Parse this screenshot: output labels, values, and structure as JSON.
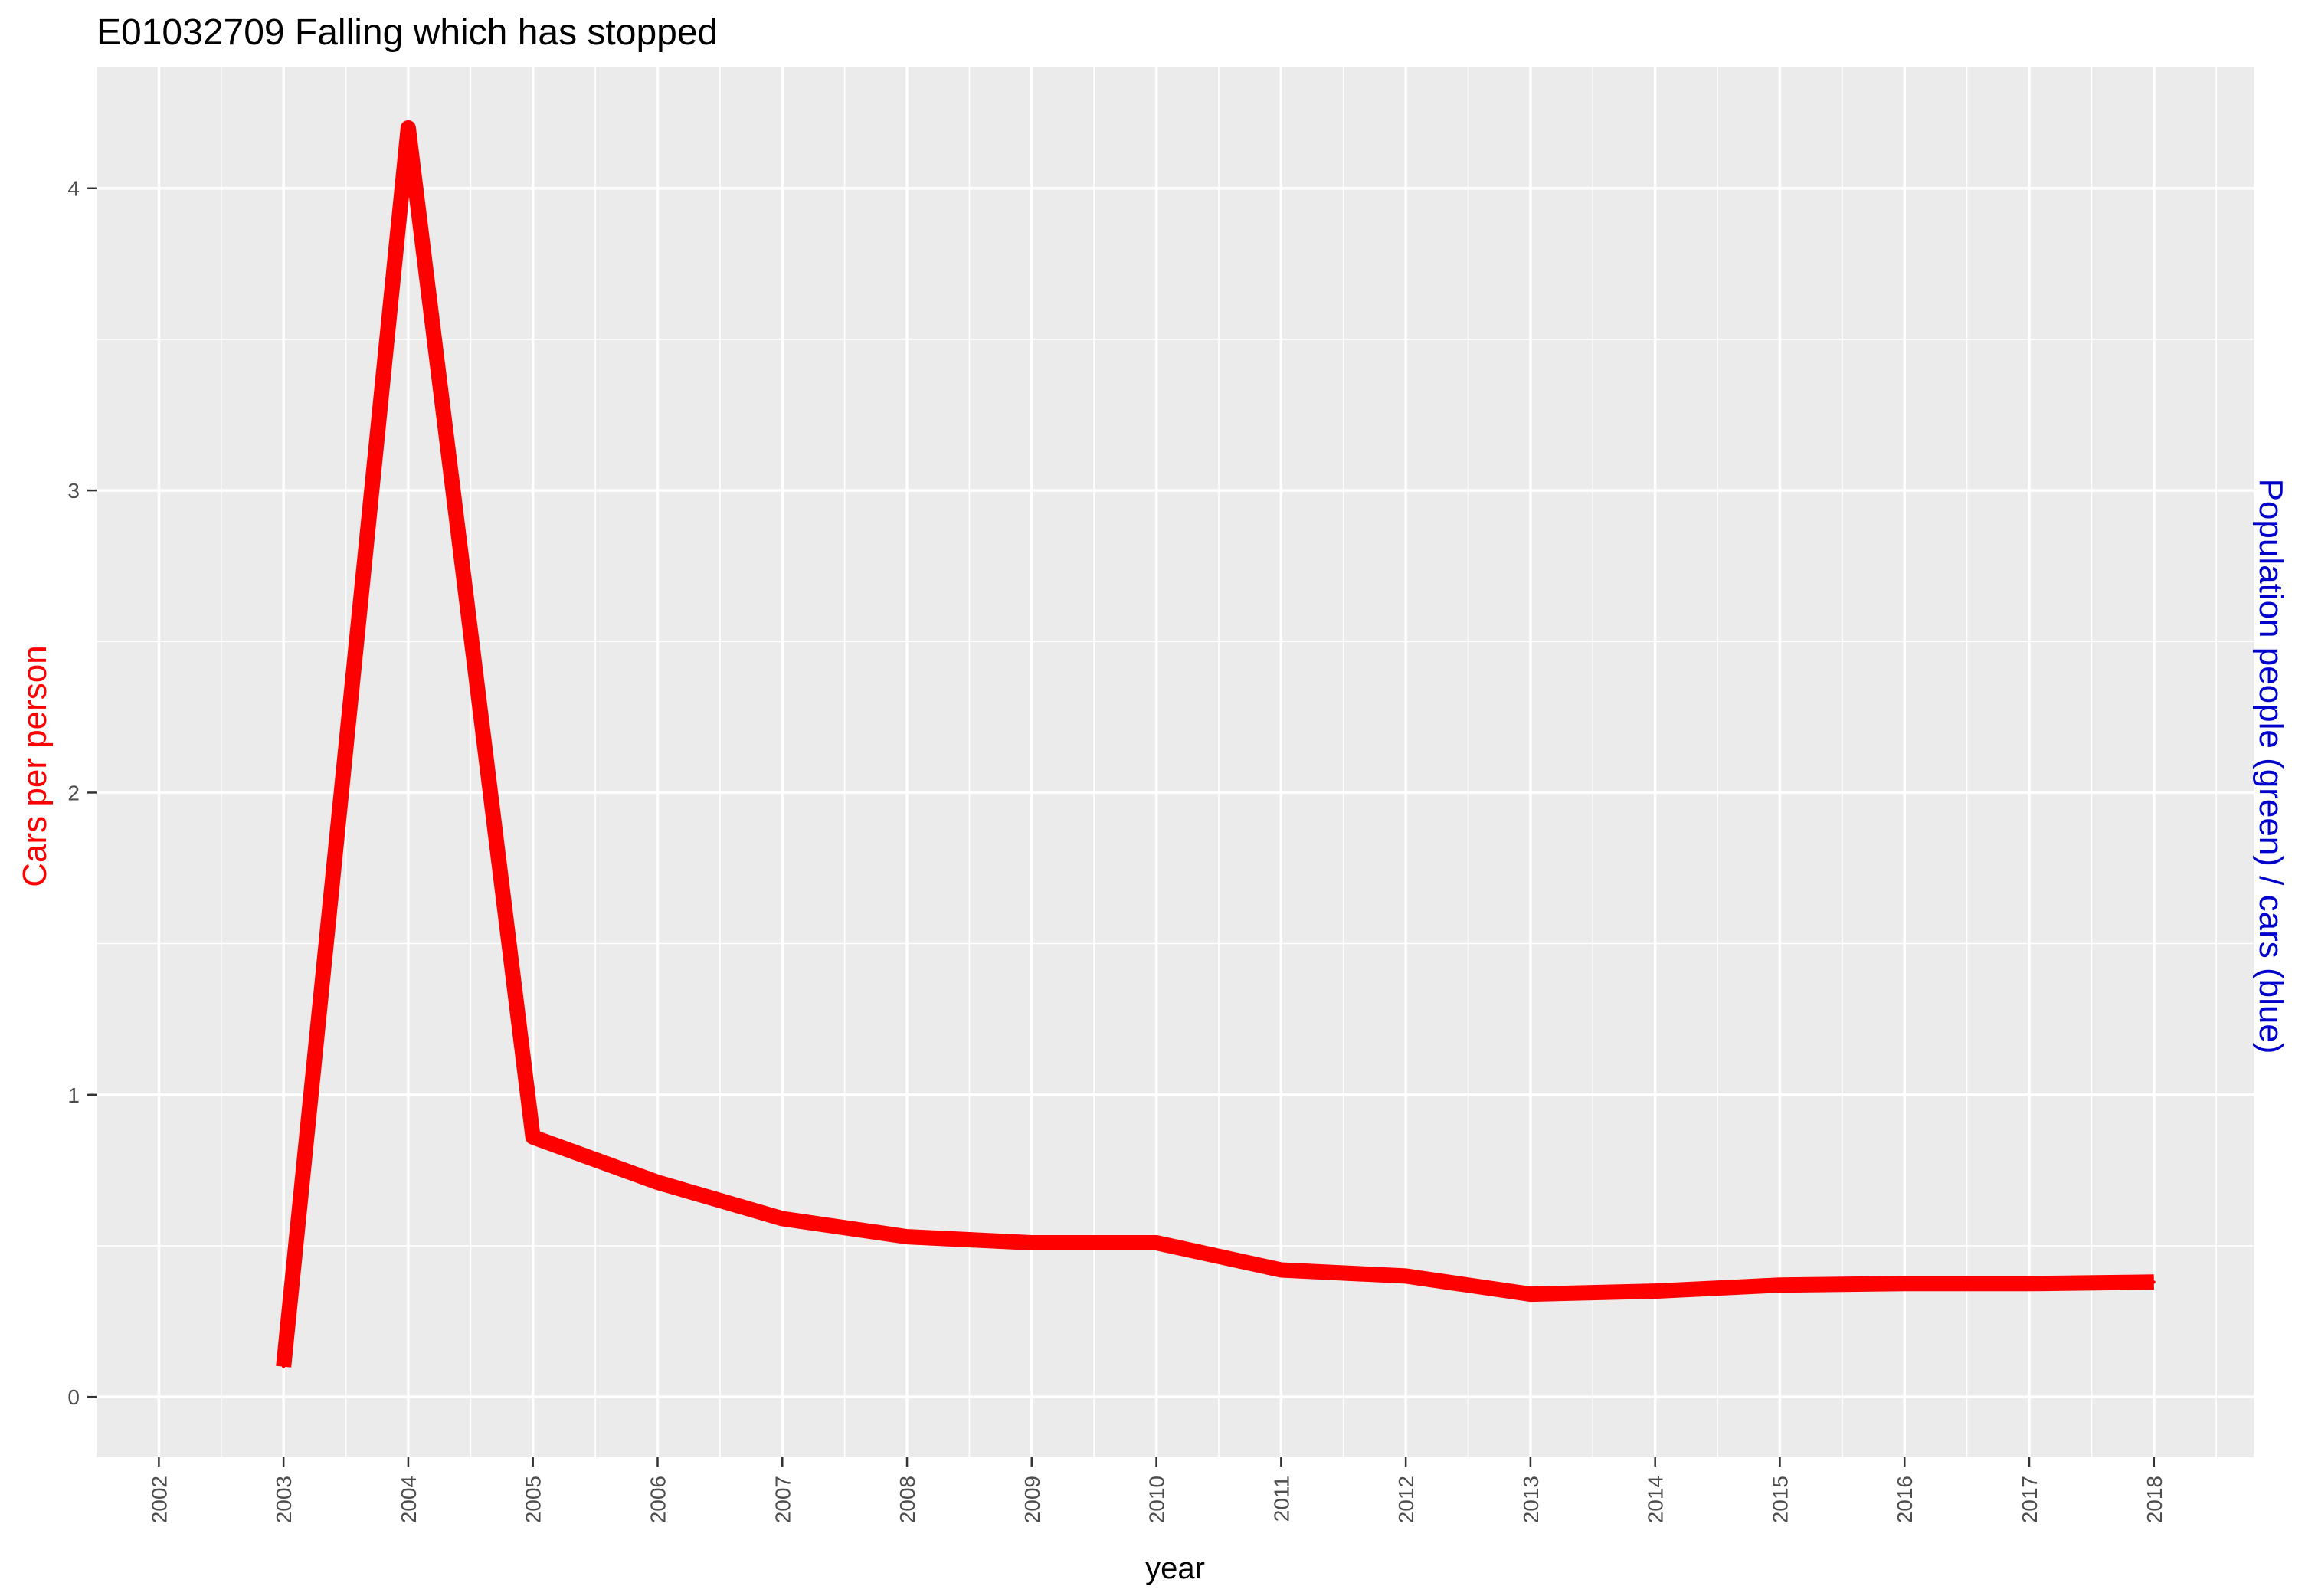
{
  "chart_data": {
    "type": "line",
    "title": "E01032709 Falling which has stopped",
    "xlabel": "year",
    "ylabel_left": "Cars per person",
    "ylabel_right": "Population people (green) / cars (blue)",
    "xlim": [
      2001.5,
      2018.8
    ],
    "ylim": [
      -0.2,
      4.4
    ],
    "x_ticks": [
      2002,
      2003,
      2004,
      2005,
      2006,
      2007,
      2008,
      2009,
      2010,
      2011,
      2012,
      2013,
      2014,
      2015,
      2016,
      2017,
      2018
    ],
    "y_ticks": [
      0,
      1,
      2,
      3,
      4
    ],
    "grid": true,
    "colors": {
      "panel": "#ebebeb",
      "grid": "#ffffff",
      "series": "#ff0000",
      "left_label": "#ff0000",
      "right_label": "#0000cd",
      "tick_text": "#4d4d4d",
      "title_text": "#000000"
    },
    "series": [
      {
        "x": [
          2003,
          2004,
          2005,
          2006,
          2007,
          2008,
          2009,
          2010,
          2011,
          2012,
          2013,
          2014,
          2015,
          2016,
          2017,
          2018
        ],
        "values": [
          0.1,
          4.2,
          0.86,
          0.71,
          0.59,
          0.53,
          0.51,
          0.51,
          0.42,
          0.4,
          0.34,
          0.35,
          0.37,
          0.375,
          0.375,
          0.38
        ]
      }
    ]
  }
}
